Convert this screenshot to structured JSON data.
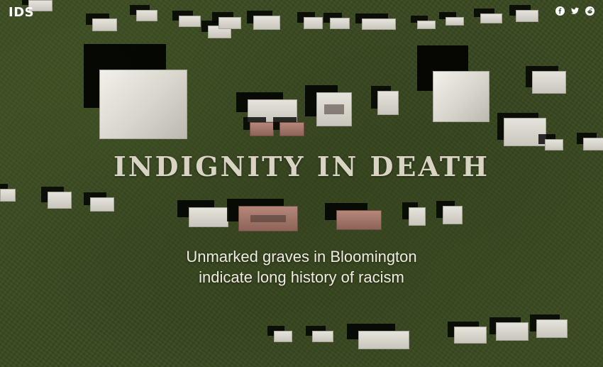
{
  "header": {
    "logo": "IDS",
    "social": [
      {
        "name": "facebook-icon"
      },
      {
        "name": "twitter-icon"
      },
      {
        "name": "reddit-icon"
      }
    ]
  },
  "hero": {
    "title": "INDIGNITY IN DEATH",
    "subtitle_line1": "Unmarked graves in Bloomington",
    "subtitle_line2": "indicate long history of racism"
  },
  "colors": {
    "grass": "#3b4a22",
    "title": "#d9d3c4",
    "subtitle": "#eeeae0"
  }
}
